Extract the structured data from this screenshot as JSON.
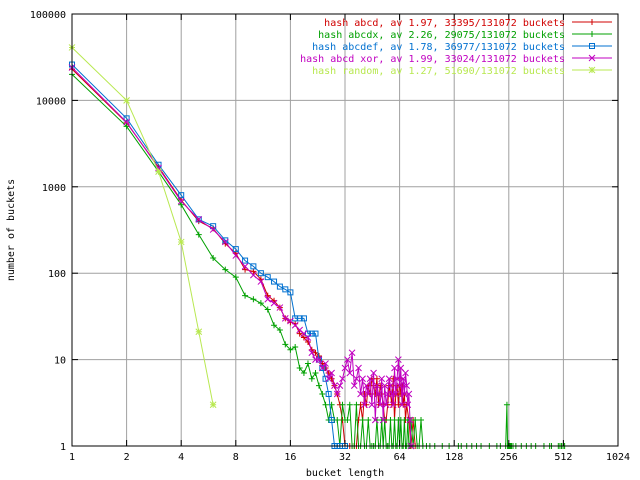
{
  "chart_data": {
    "type": "line",
    "title": "",
    "xlabel": "bucket length",
    "ylabel": "number of buckets",
    "x_scale": "log2",
    "y_scale": "log10",
    "xlim": [
      1,
      1024
    ],
    "ylim": [
      1,
      100000
    ],
    "x_ticks": [
      1,
      2,
      4,
      8,
      16,
      32,
      64,
      128,
      256,
      512,
      1024
    ],
    "x_tick_labels": [
      "1",
      "2",
      "4",
      "8",
      "16",
      "32",
      "64",
      "128",
      "256",
      "512",
      "1024"
    ],
    "y_ticks": [
      1,
      10,
      100,
      1000,
      10000,
      100000
    ],
    "y_tick_labels": [
      "1",
      "10",
      "100",
      "1000",
      "10000",
      "100000"
    ],
    "grid": true,
    "legend_position": "top-right",
    "series": [
      {
        "name": "hash abcd, av 1.97, 33395/131072 buckets",
        "color": "#d00000",
        "marker": "plus",
        "points": [
          [
            1,
            23000
          ],
          [
            2,
            5500
          ],
          [
            3,
            1700
          ],
          [
            4,
            700
          ],
          [
            5,
            400
          ],
          [
            6,
            330
          ],
          [
            7,
            220
          ],
          [
            8,
            170
          ],
          [
            9,
            110
          ],
          [
            10,
            105
          ],
          [
            11,
            85
          ],
          [
            12,
            55
          ],
          [
            13,
            48
          ],
          [
            14,
            40
          ],
          [
            15,
            30
          ],
          [
            16,
            27
          ],
          [
            17,
            26
          ],
          [
            18,
            20
          ],
          [
            19,
            18
          ],
          [
            20,
            16
          ],
          [
            21,
            13
          ],
          [
            22,
            12
          ],
          [
            23,
            11
          ],
          [
            24,
            9
          ],
          [
            25,
            8
          ],
          [
            26,
            7
          ],
          [
            27,
            6
          ],
          [
            28,
            5
          ],
          [
            29,
            4
          ],
          [
            30,
            3
          ],
          [
            31,
            2
          ],
          [
            32,
            1
          ],
          [
            33,
            1
          ],
          [
            34,
            1
          ],
          [
            35,
            1
          ],
          [
            36,
            1
          ],
          [
            37,
            1
          ],
          [
            38,
            2
          ],
          [
            39,
            3
          ],
          [
            40,
            2
          ],
          [
            41,
            4
          ],
          [
            42,
            3
          ],
          [
            43,
            5
          ],
          [
            44,
            4
          ],
          [
            45,
            6
          ],
          [
            46,
            5
          ],
          [
            47,
            4
          ],
          [
            48,
            6
          ],
          [
            49,
            3
          ],
          [
            50,
            5
          ],
          [
            51,
            4
          ],
          [
            52,
            3
          ],
          [
            53,
            2
          ],
          [
            54,
            2
          ],
          [
            55,
            3
          ],
          [
            56,
            5
          ],
          [
            57,
            4
          ],
          [
            58,
            3
          ],
          [
            59,
            6
          ],
          [
            60,
            2
          ],
          [
            61,
            4
          ],
          [
            62,
            5
          ],
          [
            63,
            3
          ],
          [
            64,
            6
          ],
          [
            65,
            4
          ],
          [
            66,
            5
          ],
          [
            67,
            3
          ],
          [
            68,
            4
          ],
          [
            69,
            2
          ],
          [
            70,
            3
          ],
          [
            72,
            2
          ],
          [
            74,
            1
          ],
          [
            76,
            2
          ],
          [
            78,
            1
          ]
        ]
      },
      {
        "name": "hash abcdx, av 2.26, 29075/131072 buckets",
        "color": "#00a000",
        "marker": "plus",
        "points": [
          [
            1,
            20000
          ],
          [
            2,
            5000
          ],
          [
            3,
            1500
          ],
          [
            4,
            620
          ],
          [
            5,
            280
          ],
          [
            6,
            150
          ],
          [
            7,
            110
          ],
          [
            8,
            90
          ],
          [
            9,
            55
          ],
          [
            10,
            50
          ],
          [
            11,
            45
          ],
          [
            12,
            38
          ],
          [
            13,
            25
          ],
          [
            14,
            22
          ],
          [
            15,
            15
          ],
          [
            16,
            13
          ],
          [
            17,
            14
          ],
          [
            18,
            8
          ],
          [
            19,
            7
          ],
          [
            20,
            9
          ],
          [
            21,
            6
          ],
          [
            22,
            7
          ],
          [
            23,
            5
          ],
          [
            24,
            4
          ],
          [
            25,
            3
          ],
          [
            26,
            2
          ],
          [
            27,
            3
          ],
          [
            28,
            2
          ],
          [
            29,
            2
          ],
          [
            30,
            1
          ],
          [
            31,
            3
          ],
          [
            32,
            2
          ],
          [
            33,
            2
          ],
          [
            34,
            3
          ],
          [
            35,
            1
          ],
          [
            36,
            1
          ],
          [
            37,
            3
          ],
          [
            38,
            1
          ],
          [
            39,
            1
          ],
          [
            40,
            2
          ],
          [
            41,
            1
          ],
          [
            42,
            1
          ],
          [
            43,
            2
          ],
          [
            44,
            1
          ],
          [
            45,
            1
          ],
          [
            46,
            1
          ],
          [
            47,
            1
          ],
          [
            48,
            2
          ],
          [
            49,
            1
          ],
          [
            50,
            1
          ],
          [
            51,
            2
          ],
          [
            52,
            1
          ],
          [
            53,
            2
          ],
          [
            54,
            1
          ],
          [
            55,
            1
          ],
          [
            56,
            1
          ],
          [
            57,
            2
          ],
          [
            58,
            1
          ],
          [
            59,
            1
          ],
          [
            60,
            2
          ],
          [
            61,
            1
          ],
          [
            62,
            1
          ],
          [
            63,
            2
          ],
          [
            64,
            1
          ],
          [
            65,
            2
          ],
          [
            66,
            1
          ],
          [
            67,
            1
          ],
          [
            68,
            2
          ],
          [
            69,
            1
          ],
          [
            70,
            1
          ],
          [
            71,
            2
          ],
          [
            72,
            1
          ],
          [
            73,
            1
          ],
          [
            74,
            2
          ],
          [
            76,
            1
          ],
          [
            78,
            2
          ],
          [
            80,
            1
          ],
          [
            82,
            1
          ],
          [
            84,
            2
          ],
          [
            86,
            1
          ],
          [
            90,
            1
          ],
          [
            94,
            1
          ],
          [
            100,
            1
          ],
          [
            110,
            1
          ],
          [
            120,
            1
          ],
          [
            135,
            1
          ],
          [
            140,
            1
          ],
          [
            150,
            1
          ],
          [
            160,
            1
          ],
          [
            170,
            1
          ],
          [
            180,
            1
          ],
          [
            200,
            1
          ],
          [
            220,
            1
          ],
          [
            230,
            1
          ],
          [
            246,
            1
          ],
          [
            250,
            3
          ],
          [
            252,
            1
          ],
          [
            255,
            1
          ],
          [
            258,
            1
          ],
          [
            260,
            1
          ],
          [
            262,
            1
          ],
          [
            265,
            1
          ],
          [
            270,
            1
          ],
          [
            280,
            1
          ],
          [
            300,
            1
          ],
          [
            320,
            1
          ],
          [
            340,
            1
          ],
          [
            360,
            1
          ],
          [
            400,
            1
          ],
          [
            430,
            1
          ],
          [
            440,
            1
          ],
          [
            480,
            1
          ],
          [
            490,
            1
          ],
          [
            500,
            1
          ],
          [
            510,
            1
          ],
          [
            520,
            1
          ]
        ]
      },
      {
        "name": "hash abcdef, av 1.78, 36977/131072 buckets",
        "color": "#0070d0",
        "marker": "box",
        "points": [
          [
            1,
            26000
          ],
          [
            2,
            6200
          ],
          [
            3,
            1800
          ],
          [
            4,
            800
          ],
          [
            5,
            420
          ],
          [
            6,
            350
          ],
          [
            7,
            240
          ],
          [
            8,
            190
          ],
          [
            9,
            140
          ],
          [
            10,
            120
          ],
          [
            11,
            100
          ],
          [
            12,
            90
          ],
          [
            13,
            80
          ],
          [
            14,
            70
          ],
          [
            15,
            65
          ],
          [
            16,
            60
          ],
          [
            17,
            30
          ],
          [
            18,
            30
          ],
          [
            19,
            30
          ],
          [
            20,
            20
          ],
          [
            21,
            20
          ],
          [
            22,
            20
          ],
          [
            23,
            10
          ],
          [
            24,
            8
          ],
          [
            25,
            6
          ],
          [
            26,
            4
          ],
          [
            27,
            2
          ],
          [
            28,
            1
          ],
          [
            29,
            1
          ],
          [
            30,
            1
          ],
          [
            31,
            1
          ],
          [
            32,
            1
          ]
        ]
      },
      {
        "name": "hash abcd xor, av 1.99, 33024/131072 buckets",
        "color": "#c000c0",
        "marker": "cross",
        "points": [
          [
            1,
            24000
          ],
          [
            2,
            5600
          ],
          [
            3,
            1650
          ],
          [
            4,
            680
          ],
          [
            5,
            420
          ],
          [
            6,
            320
          ],
          [
            7,
            230
          ],
          [
            8,
            160
          ],
          [
            9,
            120
          ],
          [
            10,
            95
          ],
          [
            11,
            80
          ],
          [
            12,
            50
          ],
          [
            13,
            45
          ],
          [
            14,
            40
          ],
          [
            15,
            30
          ],
          [
            16,
            28
          ],
          [
            17,
            25
          ],
          [
            18,
            22
          ],
          [
            19,
            20
          ],
          [
            20,
            18
          ],
          [
            21,
            12
          ],
          [
            22,
            10
          ],
          [
            23,
            10
          ],
          [
            24,
            8
          ],
          [
            25,
            9
          ],
          [
            26,
            6
          ],
          [
            27,
            7
          ],
          [
            28,
            5
          ],
          [
            29,
            4
          ],
          [
            30,
            5
          ],
          [
            31,
            6
          ],
          [
            32,
            8
          ],
          [
            33,
            10
          ],
          [
            34,
            7
          ],
          [
            35,
            12
          ],
          [
            36,
            5
          ],
          [
            37,
            6
          ],
          [
            38,
            8
          ],
          [
            39,
            4
          ],
          [
            40,
            6
          ],
          [
            41,
            3
          ],
          [
            42,
            5
          ],
          [
            43,
            4
          ],
          [
            44,
            6
          ],
          [
            45,
            3
          ],
          [
            46,
            7
          ],
          [
            47,
            2
          ],
          [
            48,
            5
          ],
          [
            49,
            4
          ],
          [
            50,
            3
          ],
          [
            51,
            6
          ],
          [
            52,
            2
          ],
          [
            53,
            5
          ],
          [
            54,
            3
          ],
          [
            55,
            4
          ],
          [
            56,
            6
          ],
          [
            57,
            5
          ],
          [
            58,
            4
          ],
          [
            59,
            3
          ],
          [
            60,
            8
          ],
          [
            61,
            4
          ],
          [
            62,
            6
          ],
          [
            63,
            10
          ],
          [
            64,
            5
          ],
          [
            65,
            8
          ],
          [
            66,
            3
          ],
          [
            67,
            6
          ],
          [
            68,
            4
          ],
          [
            69,
            7
          ],
          [
            70,
            5
          ],
          [
            71,
            3
          ],
          [
            72,
            4
          ],
          [
            73,
            2
          ],
          [
            74,
            1
          ]
        ]
      },
      {
        "name": "hash random, av 1.27, 51690/131072 buckets",
        "color": "#b8e850",
        "marker": "star",
        "points": [
          [
            1,
            41000
          ],
          [
            2,
            10000
          ],
          [
            3,
            1500
          ],
          [
            4,
            230
          ],
          [
            5,
            21
          ],
          [
            6,
            3
          ]
        ]
      }
    ]
  }
}
